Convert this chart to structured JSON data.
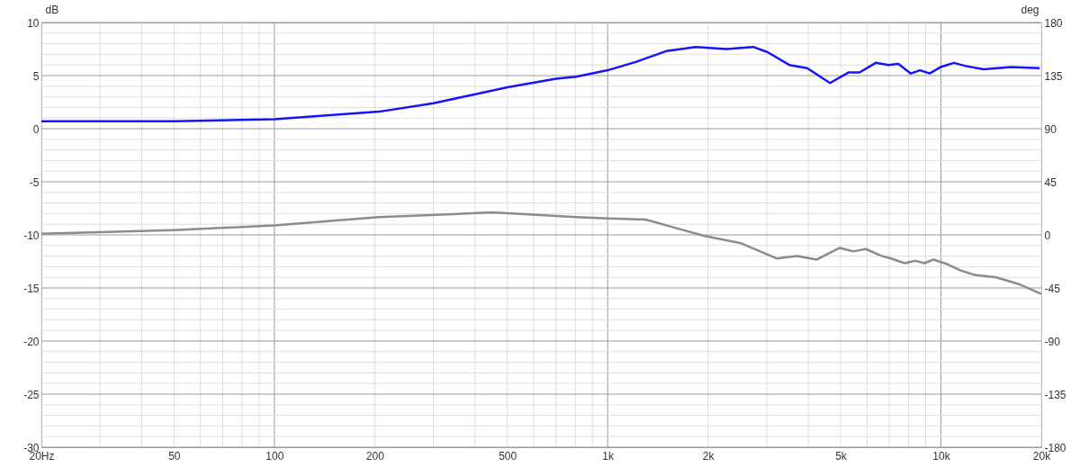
{
  "chart_data": {
    "type": "line",
    "ylabel": "dB",
    "y2label": "deg",
    "log": "x",
    "grid": true,
    "line_style": "solid",
    "marker": "none",
    "xlim": [
      20,
      20000
    ],
    "ylim": [
      -30,
      10
    ],
    "y2lim": [
      -180,
      180
    ],
    "xticks": [
      {
        "value": 20,
        "label": "20Hz"
      },
      {
        "value": 30,
        "label": null
      },
      {
        "value": 40,
        "label": null
      },
      50,
      {
        "value": 60,
        "label": null
      },
      {
        "value": 70,
        "label": null
      },
      {
        "value": 80,
        "label": null
      },
      {
        "value": 90,
        "label": null
      },
      100,
      200,
      {
        "value": 300,
        "label": null
      },
      {
        "value": 400,
        "label": null
      },
      500,
      {
        "value": 600,
        "label": null
      },
      {
        "value": 700,
        "label": null
      },
      {
        "value": 800,
        "label": null
      },
      {
        "value": 900,
        "label": null
      },
      {
        "value": 1000,
        "label": "1k"
      },
      {
        "value": 2000,
        "label": "2k"
      },
      {
        "value": 3000,
        "label": null
      },
      {
        "value": 4000,
        "label": null
      },
      {
        "value": 5000,
        "label": "5k"
      },
      {
        "value": 6000,
        "label": null
      },
      {
        "value": 7000,
        "label": null
      },
      {
        "value": 8000,
        "label": null
      },
      {
        "value": 9000,
        "label": null
      },
      {
        "value": 10000,
        "label": "10k"
      },
      {
        "value": 20000,
        "label": "20k"
      }
    ],
    "yticks": [
      -30,
      {
        "value": -29,
        "label": null
      },
      {
        "value": -28,
        "label": null
      },
      {
        "value": -27,
        "label": null
      },
      {
        "value": -26,
        "label": null
      },
      -25,
      {
        "value": -24,
        "label": null
      },
      {
        "value": -23,
        "label": null
      },
      {
        "value": -22,
        "label": null
      },
      {
        "value": -21,
        "label": null
      },
      -20,
      {
        "value": -19,
        "label": null
      },
      {
        "value": -18,
        "label": null
      },
      {
        "value": -17,
        "label": null
      },
      {
        "value": -16,
        "label": null
      },
      -15,
      {
        "value": -14,
        "label": null
      },
      {
        "value": -13,
        "label": null
      },
      {
        "value": -12,
        "label": null
      },
      {
        "value": -11,
        "label": null
      },
      -10,
      {
        "value": -9,
        "label": null
      },
      {
        "value": -8,
        "label": null
      },
      {
        "value": -7,
        "label": null
      },
      {
        "value": -6,
        "label": null
      },
      -5,
      {
        "value": -4,
        "label": null
      },
      {
        "value": -3,
        "label": null
      },
      {
        "value": -2,
        "label": null
      },
      {
        "value": -1,
        "label": null
      },
      0,
      {
        "value": 1,
        "label": null
      },
      {
        "value": 2,
        "label": null
      },
      {
        "value": 3,
        "label": null
      },
      {
        "value": 4,
        "label": null
      },
      5,
      {
        "value": 6,
        "label": null
      },
      {
        "value": 7,
        "label": null
      },
      {
        "value": 8,
        "label": null
      },
      {
        "value": 9,
        "label": null
      },
      10
    ],
    "y2ticks": [
      -180,
      -135,
      -90,
      -45,
      0,
      45,
      90,
      135,
      180
    ],
    "series": [
      {
        "color": "#1414ff",
        "x": [
          20,
          50,
          100,
          206,
          300,
          395,
          500,
          700,
          804,
          1000,
          1219,
          1497,
          1837,
          2270,
          2735,
          3020,
          3505,
          3970,
          4645,
          5290,
          5700,
          6370,
          6950,
          7450,
          8120,
          8650,
          9250,
          9970,
          10940,
          11860,
          13430,
          16190,
          19770
        ],
        "values": [
          0.7,
          0.7,
          0.9,
          1.6,
          2.4,
          3.2,
          3.9,
          4.7,
          4.9,
          5.5,
          6.3,
          7.3,
          7.7,
          7.5,
          7.7,
          7.2,
          6.0,
          5.7,
          4.3,
          5.3,
          5.3,
          6.2,
          6.0,
          6.1,
          5.2,
          5.5,
          5.2,
          5.8,
          6.2,
          5.9,
          5.6,
          5.8,
          5.7
        ]
      },
      {
        "color": "#8c8c8c",
        "axis": "y2",
        "x": [
          20,
          50,
          100,
          206,
          451,
          804,
          1000,
          1298,
          1592,
          1954,
          2505,
          3212,
          3700,
          4230,
          4970,
          5460,
          5950,
          6660,
          7080,
          7780,
          8380,
          8920,
          9490,
          10480,
          11420,
          12620,
          14650,
          17220,
          20000
        ],
        "values": [
          1,
          4,
          8,
          15,
          19,
          15,
          14,
          13,
          6,
          -1,
          -7,
          -20,
          -18,
          -21,
          -11,
          -14,
          -12,
          -18,
          -20,
          -24,
          -22,
          -24,
          -21,
          -25,
          -30,
          -34,
          -36,
          -42,
          -50
        ]
      }
    ]
  }
}
